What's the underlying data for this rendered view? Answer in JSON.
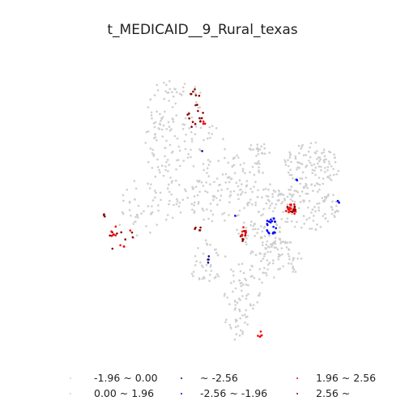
{
  "title": "t_MEDICAID__9_Rural_texas",
  "legend": [
    {
      "label": "-1.96 ~ 0.00",
      "color": "#d3d3d3"
    },
    {
      "label": "0.00 ~ 1.96",
      "color": "#d3d3d3"
    },
    {
      "label": "~ -2.56",
      "color": "#00008b"
    },
    {
      "label": "-2.56 ~ -1.96",
      "color": "#0000ff"
    },
    {
      "label": "1.96 ~ 2.56",
      "color": "#ff0000"
    },
    {
      "label": "2.56 ~",
      "color": "#8b0000"
    }
  ]
}
